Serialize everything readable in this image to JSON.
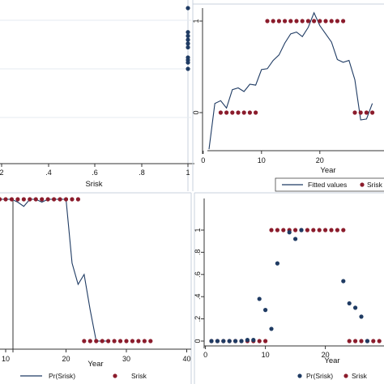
{
  "chart_data": [
    {
      "id": "top-left",
      "type": "scatter",
      "xlabel": "Srisk",
      "ylabel": "",
      "x_ticks": [
        "2",
        ".4",
        ".6",
        ".8",
        "1"
      ],
      "y_ticks": [],
      "series": [
        {
          "color": "#1f3b63",
          "x": [
            1,
            1,
            1,
            1,
            1,
            1,
            1,
            1,
            1,
            1
          ],
          "y": [
            0.97,
            0.78,
            0.75,
            0.72,
            0.69,
            0.66,
            0.58,
            0.56,
            0.54,
            0.49
          ]
        }
      ]
    },
    {
      "id": "top-right",
      "type": "line",
      "xlabel": "Year",
      "ylabel": "",
      "x_ticks": [
        "0",
        "10",
        "20"
      ],
      "y_ticks": [
        "0",
        "1"
      ],
      "xlim": [
        -1,
        30
      ],
      "ylim": [
        -0.4,
        1.1
      ],
      "legend": {
        "position": "bottom",
        "entries": [
          "Fitted values",
          "Srisk"
        ]
      },
      "series": [
        {
          "name": "Fitted values",
          "style": "line",
          "color": "#1f3b63",
          "x": [
            1,
            2,
            3,
            4,
            5,
            6,
            7,
            8,
            9,
            10,
            11,
            12,
            13,
            14,
            15,
            16,
            17,
            18,
            19,
            20,
            21,
            22,
            23,
            24,
            25,
            26,
            27,
            28,
            29
          ],
          "y": [
            -0.4,
            0.1,
            0.13,
            0.05,
            0.25,
            0.27,
            0.23,
            0.31,
            0.3,
            0.47,
            0.48,
            0.57,
            0.63,
            0.76,
            0.86,
            0.88,
            0.83,
            0.93,
            1.09,
            0.95,
            0.86,
            0.77,
            0.58,
            0.55,
            0.57,
            0.36,
            -0.08,
            -0.07,
            0.1
          ]
        },
        {
          "name": "Srisk",
          "style": "dots",
          "color": "#8b1c2c",
          "x": [
            3,
            4,
            5,
            6,
            7,
            8,
            9,
            11,
            12,
            13,
            14,
            15,
            16,
            17,
            18,
            19,
            20,
            21,
            22,
            23,
            24,
            26,
            27,
            28,
            29
          ],
          "y": [
            0,
            0,
            0,
            0,
            0,
            0,
            0,
            1,
            1,
            1,
            1,
            1,
            1,
            1,
            1,
            1,
            1,
            1,
            1,
            1,
            1,
            0,
            0,
            0,
            0
          ]
        }
      ]
    },
    {
      "id": "bottom-left",
      "type": "line",
      "xlabel": "Year",
      "ylabel": "",
      "x_ticks": [
        "10",
        "20",
        "30",
        "40"
      ],
      "y_ticks": [],
      "xlim": [
        4,
        40
      ],
      "ylim": [
        0,
        1
      ],
      "legend": {
        "position": "bottom",
        "entries": [
          "Pr(Srisk)",
          "Srisk"
        ]
      },
      "series": [
        {
          "name": "Pr(Srisk)",
          "style": "line",
          "color": "#1f3b63",
          "x": [
            4,
            5,
            6,
            7,
            8,
            9,
            10,
            11,
            12,
            13,
            14,
            15,
            16,
            17,
            18,
            19,
            20,
            21,
            22,
            23,
            24,
            25,
            26,
            27
          ],
          "y": [
            0.4,
            0.33,
            0.8,
            1.0,
            1.0,
            1.0,
            1.0,
            1.0,
            0.98,
            0.95,
            1.0,
            1.0,
            0.98,
            1.0,
            1.0,
            1.0,
            1.0,
            0.55,
            0.4,
            0.47,
            0.22,
            0.0,
            0.0,
            0.0
          ]
        },
        {
          "name": "Srisk",
          "style": "dots",
          "color": "#8b1c2c",
          "x": [
            4,
            5,
            7,
            8,
            9,
            10,
            11,
            12,
            13,
            14,
            15,
            16,
            17,
            18,
            19,
            20,
            21,
            22,
            23,
            24,
            25,
            26,
            27,
            28,
            29,
            30,
            31,
            32,
            33,
            34
          ],
          "y": [
            0,
            0,
            1,
            1,
            1,
            1,
            1,
            1,
            1,
            1,
            1,
            1,
            1,
            1,
            1,
            1,
            1,
            1,
            0,
            0,
            0,
            0,
            0,
            0,
            0,
            0,
            0,
            0,
            0,
            0
          ]
        }
      ]
    },
    {
      "id": "bottom-right",
      "type": "scatter",
      "xlabel": "Year",
      "ylabel": "",
      "x_ticks": [
        "0",
        "10",
        "20"
      ],
      "y_ticks": [
        "0",
        ".2",
        ".4",
        ".6",
        ".8",
        "1"
      ],
      "xlim": [
        -1,
        30
      ],
      "ylim": [
        -0.02,
        1.08
      ],
      "legend": {
        "position": "bottom",
        "entries": [
          "Pr(Srisk)",
          "Srisk"
        ]
      },
      "series": [
        {
          "name": "Pr(Srisk)",
          "style": "dots",
          "color": "#1f3b63",
          "x": [
            1,
            2,
            3,
            4,
            5,
            6,
            7,
            8,
            9,
            10,
            11,
            12,
            14,
            15,
            16,
            23,
            24,
            25,
            26,
            27
          ],
          "y": [
            0.0,
            0.0,
            0.0,
            0.0,
            0.0,
            0.0,
            0.01,
            0.01,
            0.38,
            0.28,
            0.11,
            0.7,
            0.98,
            0.92,
            1.0,
            0.54,
            0.34,
            0.3,
            0.22,
            0.0
          ]
        },
        {
          "name": "Srisk",
          "style": "dots",
          "color": "#8b1c2c",
          "x": [
            1,
            2,
            3,
            4,
            5,
            6,
            7,
            8,
            9,
            10,
            11,
            12,
            13,
            14,
            15,
            16,
            17,
            18,
            19,
            20,
            21,
            22,
            23,
            24,
            25,
            26,
            27,
            28,
            29
          ],
          "y": [
            0,
            0,
            0,
            0,
            0,
            0,
            0,
            0,
            0,
            0,
            1,
            1,
            1,
            1,
            1,
            1,
            1,
            1,
            1,
            1,
            1,
            1,
            1,
            0,
            0,
            0,
            0,
            0,
            0
          ]
        }
      ]
    }
  ]
}
